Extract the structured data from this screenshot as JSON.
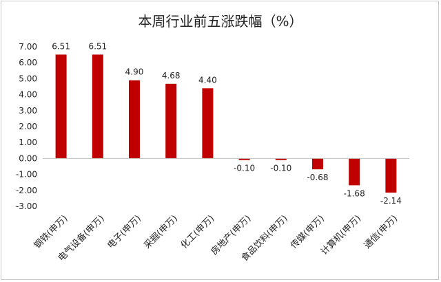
{
  "chart_data": {
    "type": "bar",
    "title": "本周行业前五涨跌幅（%）",
    "categories": [
      "钢铁(申万)",
      "电气设备(申万)",
      "电子(申万)",
      "采掘(申万)",
      "化工(申万)",
      "房地产(申万)",
      "食品饮料(申万)",
      "传媒(申万)",
      "计算机(申万)",
      "通信(申万)"
    ],
    "values": [
      6.51,
      6.51,
      4.9,
      4.68,
      4.4,
      -0.1,
      -0.1,
      -0.68,
      -1.68,
      -2.14
    ],
    "data_labels": [
      "6.51",
      "6.51",
      "4.90",
      "4.68",
      "4.40",
      "-0.10",
      "-0.10",
      "-0.68",
      "-1.68",
      "-2.14"
    ],
    "y_ticks": [
      "7.00",
      "6.00",
      "5.00",
      "4.00",
      "3.00",
      "2.00",
      "1.00",
      "0.00",
      "-1.00",
      "-2.00",
      "-3.00"
    ],
    "ylim": [
      -3,
      7
    ],
    "grid": false,
    "legend": "none",
    "bar_color": "#C00000"
  }
}
